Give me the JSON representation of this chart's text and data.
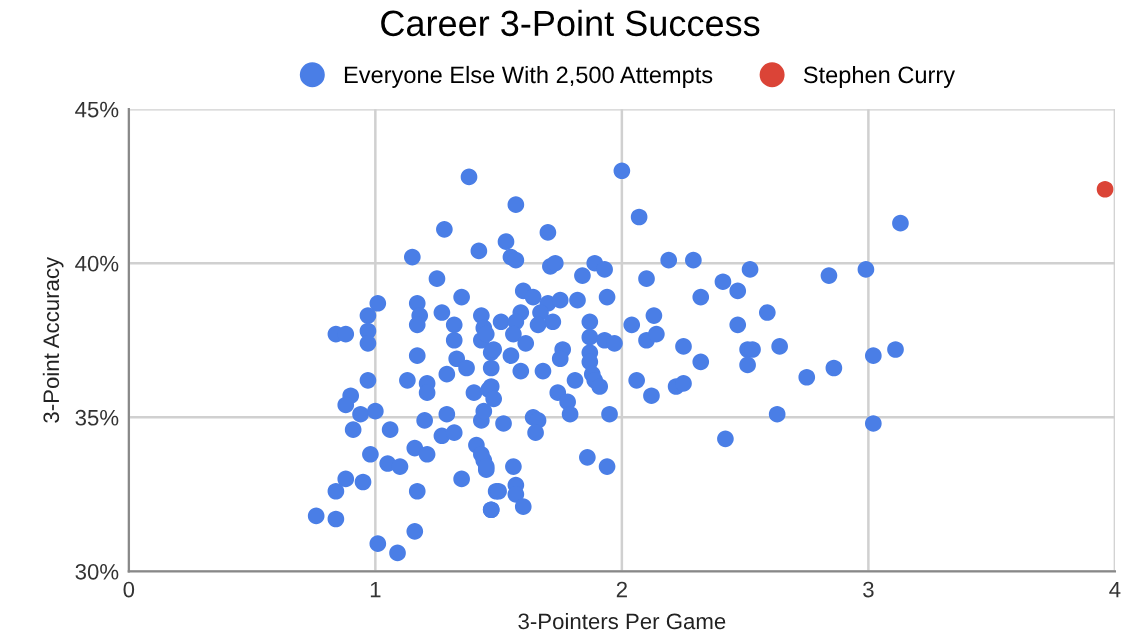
{
  "chart_data": {
    "type": "scatter",
    "title": "Career 3-Point Success",
    "xlabel": "3-Pointers Per Game",
    "ylabel": "3-Point Accuracy",
    "series": [
      {
        "name": "Everyone Else With 2,500 Attempts",
        "color": "#4a7ee6",
        "x": [
          1.38,
          1.28,
          1.15,
          1.42,
          1.25,
          1.01,
          1.17,
          1.35,
          0.97,
          1.18,
          1.27,
          0.84,
          0.88,
          0.97,
          1.17,
          0.97,
          1.32,
          1.43,
          1.32,
          1.43,
          1.17,
          1.33,
          1.47,
          0.97,
          1.13,
          1.21,
          1.29,
          1.37,
          0.9,
          0.88,
          1.21,
          1.4,
          1.47,
          0.94,
          1.0,
          0.91,
          1.06,
          1.2,
          1.29,
          1.43,
          1.27,
          1.32,
          1.41,
          0.98,
          1.16,
          1.21,
          1.05,
          1.1,
          1.44,
          1.45,
          0.88,
          0.95,
          1.35,
          0.84,
          1.17,
          1.49,
          1.47,
          0.76,
          0.84,
          1.16,
          1.01,
          1.09,
          2.0,
          1.57,
          2.07,
          1.7,
          1.53,
          1.55,
          1.57,
          1.71,
          1.73,
          1.89,
          1.93,
          1.84,
          2.19,
          2.29,
          2.1,
          2.41,
          2.52,
          2.47,
          2.84,
          2.99,
          2.32,
          1.6,
          1.64,
          1.7,
          1.75,
          1.82,
          1.94,
          1.59,
          1.67,
          2.59,
          2.13,
          1.87,
          1.51,
          1.57,
          1.72,
          2.04,
          2.47,
          1.44,
          1.66,
          1.45,
          1.56,
          1.87,
          2.1,
          2.14,
          1.93,
          1.97,
          1.61,
          2.25,
          2.51,
          2.53,
          2.64,
          1.48,
          1.55,
          1.76,
          1.87,
          1.75,
          1.87,
          2.32,
          2.51,
          3.02,
          1.47,
          1.59,
          1.68,
          1.88,
          2.86,
          1.81,
          1.89,
          2.06,
          2.75,
          1.91,
          2.22,
          2.25,
          1.46,
          1.74,
          2.12,
          1.48,
          1.78,
          1.44,
          1.79,
          1.95,
          1.64,
          1.66,
          1.52,
          2.63,
          1.65,
          2.42,
          3.02,
          1.43,
          1.86,
          1.94,
          1.45,
          1.56,
          1.5,
          1.57,
          1.57,
          1.6,
          1.47,
          3.13,
          3.11
        ],
        "values": [
          42.8,
          41.1,
          40.2,
          40.4,
          39.5,
          38.7,
          38.7,
          38.9,
          38.3,
          38.3,
          38.4,
          37.7,
          37.7,
          37.8,
          38.0,
          37.4,
          38.0,
          38.3,
          37.5,
          37.5,
          37.0,
          36.9,
          37.1,
          36.2,
          36.2,
          36.1,
          36.4,
          36.6,
          35.7,
          35.4,
          35.8,
          35.8,
          36.0,
          35.1,
          35.2,
          34.6,
          34.6,
          34.9,
          35.1,
          34.9,
          34.4,
          34.5,
          34.1,
          33.8,
          34.0,
          33.8,
          33.5,
          33.4,
          33.6,
          33.3,
          33.0,
          32.9,
          33.0,
          32.6,
          32.6,
          32.6,
          32.0,
          31.8,
          31.7,
          31.3,
          30.9,
          30.6,
          43.0,
          41.9,
          41.5,
          41.0,
          40.7,
          40.2,
          40.1,
          39.9,
          40.0,
          40.0,
          39.8,
          39.6,
          40.1,
          40.1,
          39.5,
          39.4,
          39.8,
          39.1,
          39.6,
          39.8,
          38.9,
          39.1,
          38.9,
          38.7,
          38.8,
          38.8,
          38.9,
          38.4,
          38.4,
          38.4,
          38.3,
          38.1,
          38.1,
          38.1,
          38.1,
          38.0,
          38.0,
          37.9,
          38.0,
          37.7,
          37.7,
          37.6,
          37.5,
          37.7,
          37.5,
          37.4,
          37.4,
          37.3,
          37.2,
          37.2,
          37.3,
          37.2,
          37.0,
          37.2,
          37.1,
          36.9,
          36.8,
          36.8,
          36.7,
          37.0,
          36.6,
          36.5,
          36.5,
          36.4,
          36.6,
          36.2,
          36.2,
          36.2,
          36.3,
          36.0,
          36.0,
          36.1,
          35.9,
          35.8,
          35.7,
          35.6,
          35.5,
          35.2,
          35.1,
          35.1,
          35.0,
          34.9,
          34.8,
          35.1,
          34.5,
          34.3,
          34.8,
          33.8,
          33.7,
          33.4,
          33.4,
          33.4,
          32.6,
          32.8,
          32.5,
          32.1,
          32.0,
          41.3,
          37.2
        ]
      },
      {
        "name": "Stephen Curry",
        "color": "#db4437",
        "x": [
          3.96
        ],
        "values": [
          42.4
        ]
      }
    ],
    "xlim": [
      0,
      4
    ],
    "xticks": [
      0,
      1,
      2,
      3,
      4
    ],
    "ylim": [
      30,
      45
    ],
    "yticks": [
      {
        "value": 30,
        "label": "30%"
      },
      {
        "value": 35,
        "label": "35%"
      },
      {
        "value": 40,
        "label": "40%"
      },
      {
        "value": 45,
        "label": "45%"
      }
    ],
    "grid": true,
    "legend": "top",
    "marker": "circle"
  }
}
